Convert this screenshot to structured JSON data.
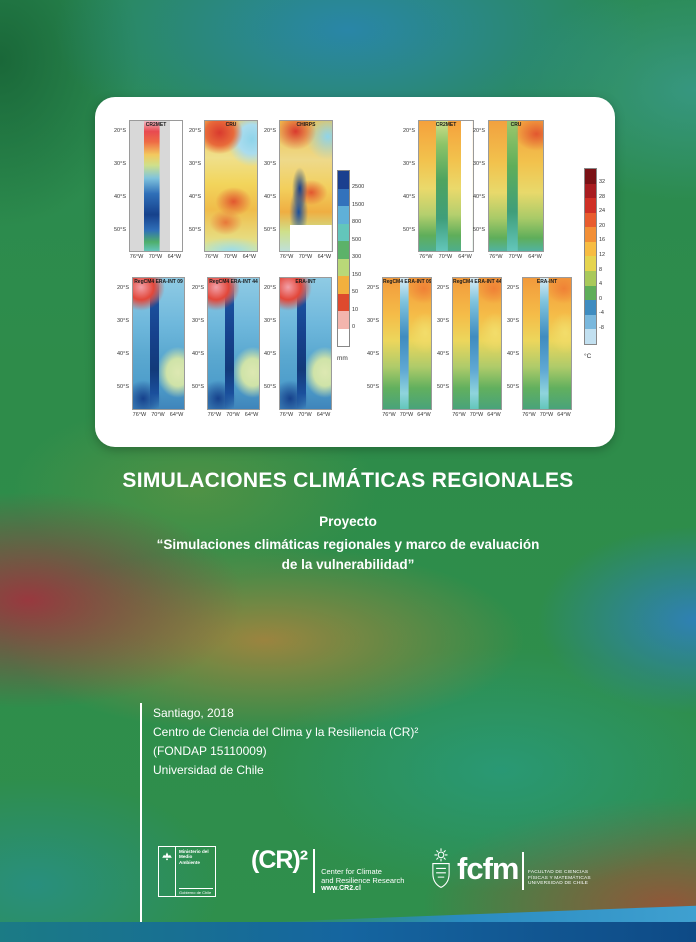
{
  "cover": {
    "title": "SIMULACIONES CLIMÁTICAS REGIONALES",
    "project_label": "Proyecto",
    "project_quote_line1": "“Simulaciones climáticas regionales y marco de evaluación",
    "project_quote_line2": "de la vulnerabilidad”"
  },
  "imprint": {
    "line1": "Santiago, 2018",
    "line2": "Centro de Ciencia del Clima y la Resiliencia (CR)²",
    "line3": "(FONDAP 15110009)",
    "line4": "Universidad de Chile"
  },
  "figure": {
    "lat_ticks": [
      "20°S",
      "30°S",
      "40°S",
      "50°S"
    ],
    "lon_ticks": [
      "76°W",
      "70°W",
      "64°W"
    ],
    "panels": [
      {
        "title": "CR2MET",
        "variant": "pa"
      },
      {
        "title": "CRU",
        "variant": "pb"
      },
      {
        "title": "CHIRPS",
        "variant": "pc"
      },
      {
        "title": "CR2MET",
        "variant": "ta"
      },
      {
        "title": "CRU",
        "variant": "tb"
      },
      {
        "title": "RegCM4 ERA-INT 09",
        "variant": "ps"
      },
      {
        "title": "RegCM4 ERA-INT 44",
        "variant": "ps"
      },
      {
        "title": "ERA-INT",
        "variant": "ps"
      },
      {
        "title": "RegCM4 ERA-INT 09",
        "variant": "ts"
      },
      {
        "title": "RegCM4 ERA-INT 44",
        "variant": "ts"
      },
      {
        "title": "ERA-INT",
        "variant": "ts"
      }
    ],
    "colorbars": [
      {
        "id": "precipitation",
        "unit": "mm",
        "ticks": [
          "2500",
          "1500",
          "800",
          "500",
          "300",
          "150",
          "50",
          "10",
          "0"
        ],
        "colors": [
          "#1a3f8f",
          "#3272bc",
          "#5fb0d8",
          "#63c6bb",
          "#5cb269",
          "#b9d878",
          "#f2b03e",
          "#de4a2e",
          "#f3b5ad",
          "#ffffff"
        ]
      },
      {
        "id": "temperature",
        "unit": "°C",
        "ticks": [
          "32",
          "28",
          "24",
          "20",
          "16",
          "12",
          "8",
          "4",
          "0",
          "-4",
          "-8"
        ],
        "colors": [
          "#7a1115",
          "#a81c20",
          "#cf3026",
          "#e85c2e",
          "#f28f36",
          "#f7bc42",
          "#e5d44f",
          "#a9c95b",
          "#5fae5a",
          "#3f8cc0",
          "#7ab8dd",
          "#c2e0f0"
        ]
      }
    ]
  },
  "logos": {
    "gobierno": {
      "ministry_line1": "Ministerio del",
      "ministry_line2": "Medio",
      "ministry_line3": "Ambiente",
      "footer": "Gobierno de Chile"
    },
    "cr2": {
      "wordmark": "(CR)²",
      "desc_line1": "Center for Climate",
      "desc_line2": "and Resilience Research",
      "url": "www.CR2.cl"
    },
    "fcfm": {
      "wordmark": "fcfm",
      "desc_line1": "FACULTAD DE CIENCIAS",
      "desc_line2": "FÍSICAS Y MATEMÁTICAS",
      "desc_line3": "UNIVERSIDAD DE CHILE"
    }
  }
}
